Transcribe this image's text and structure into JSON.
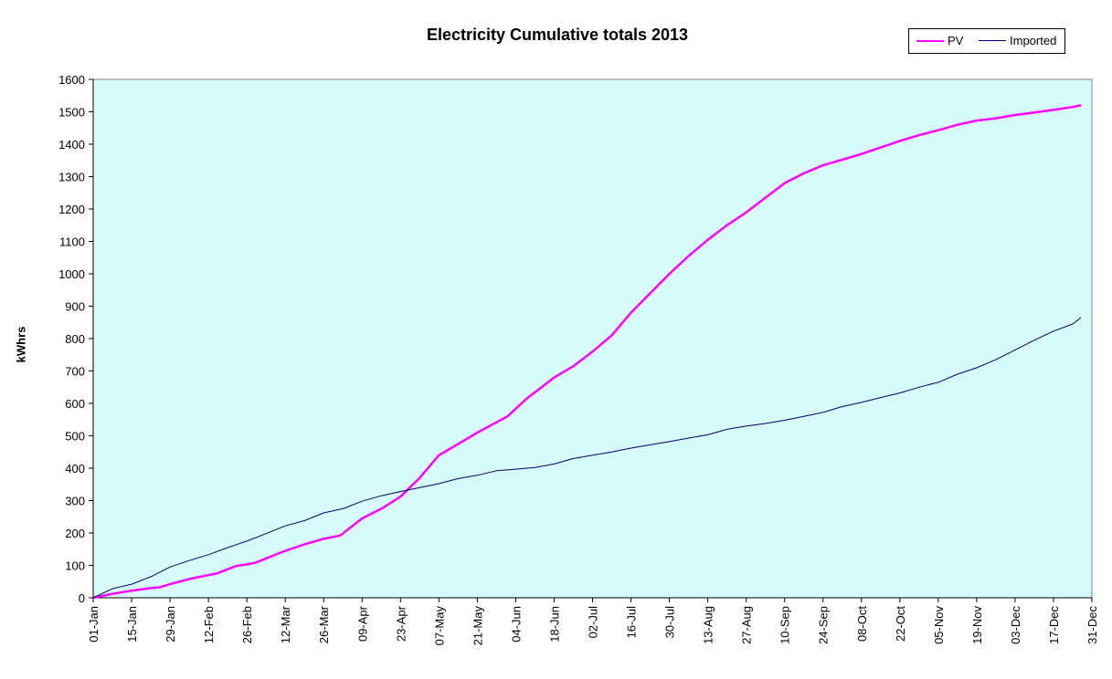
{
  "chart_data": {
    "type": "line",
    "title": "Electricity Cumulative totals 2013",
    "xlabel": "",
    "ylabel": "kWhrs",
    "ylim": [
      0,
      1600
    ],
    "xlim": [
      "01-Jan",
      "31-Dec"
    ],
    "y_ticks": [
      "0",
      "100",
      "200",
      "300",
      "400",
      "500",
      "600",
      "700",
      "800",
      "900",
      "1000",
      "1100",
      "1200",
      "1300",
      "1400",
      "1500",
      "1600"
    ],
    "x_ticks": [
      "01-Jan",
      "15-Jan",
      "29-Jan",
      "12-Feb",
      "26-Feb",
      "12-Mar",
      "26-Mar",
      "09-Apr",
      "23-Apr",
      "07-May",
      "21-May",
      "04-Jun",
      "18-Jun",
      "02-Jul",
      "16-Jul",
      "30-Jul",
      "13-Aug",
      "27-Aug",
      "10-Sep",
      "24-Sep",
      "08-Oct",
      "22-Oct",
      "05-Nov",
      "19-Nov",
      "03-Dec",
      "17-Dec",
      "31-Dec"
    ],
    "grid": false,
    "plot_background": "#d7fafb",
    "legend_position": "top-right",
    "series": [
      {
        "name": "PV",
        "color": "#ff00ff",
        "points": [
          [
            "01-Jan",
            0
          ],
          [
            "08-Jan",
            12
          ],
          [
            "15-Jan",
            22
          ],
          [
            "22-Jan",
            30
          ],
          [
            "25-Jan",
            32
          ],
          [
            "29-Jan",
            42
          ],
          [
            "05-Feb",
            58
          ],
          [
            "12-Feb",
            70
          ],
          [
            "15-Feb",
            75
          ],
          [
            "22-Feb",
            98
          ],
          [
            "26-Feb",
            103
          ],
          [
            "01-Mar",
            108
          ],
          [
            "12-Mar",
            145
          ],
          [
            "19-Mar",
            165
          ],
          [
            "26-Mar",
            182
          ],
          [
            "01-Apr",
            192
          ],
          [
            "09-Apr",
            245
          ],
          [
            "16-Apr",
            275
          ],
          [
            "23-Apr",
            312
          ],
          [
            "30-Apr",
            370
          ],
          [
            "07-May",
            440
          ],
          [
            "10-May",
            455
          ],
          [
            "21-May",
            510
          ],
          [
            "01-Jun",
            560
          ],
          [
            "08-Jun",
            615
          ],
          [
            "18-Jun",
            680
          ],
          [
            "25-Jun",
            715
          ],
          [
            "02-Jul",
            760
          ],
          [
            "09-Jul",
            810
          ],
          [
            "16-Jul",
            880
          ],
          [
            "23-Jul",
            940
          ],
          [
            "30-Jul",
            1000
          ],
          [
            "06-Aug",
            1055
          ],
          [
            "13-Aug",
            1105
          ],
          [
            "20-Aug",
            1150
          ],
          [
            "27-Aug",
            1190
          ],
          [
            "03-Sep",
            1235
          ],
          [
            "10-Sep",
            1280
          ],
          [
            "17-Sep",
            1310
          ],
          [
            "24-Sep",
            1335
          ],
          [
            "01-Oct",
            1352
          ],
          [
            "08-Oct",
            1370
          ],
          [
            "15-Oct",
            1390
          ],
          [
            "22-Oct",
            1410
          ],
          [
            "29-Oct",
            1428
          ],
          [
            "05-Nov",
            1443
          ],
          [
            "12-Nov",
            1460
          ],
          [
            "19-Nov",
            1473
          ],
          [
            "26-Nov",
            1480
          ],
          [
            "03-Dec",
            1490
          ],
          [
            "10-Dec",
            1498
          ],
          [
            "17-Dec",
            1506
          ],
          [
            "24-Dec",
            1515
          ],
          [
            "27-Dec",
            1520
          ]
        ]
      },
      {
        "name": "Imported",
        "color": "#000066",
        "points": [
          [
            "01-Jan",
            0
          ],
          [
            "08-Jan",
            28
          ],
          [
            "15-Jan",
            42
          ],
          [
            "22-Jan",
            65
          ],
          [
            "29-Jan",
            95
          ],
          [
            "05-Feb",
            115
          ],
          [
            "12-Feb",
            133
          ],
          [
            "19-Feb",
            155
          ],
          [
            "26-Feb",
            175
          ],
          [
            "05-Mar",
            198
          ],
          [
            "12-Mar",
            222
          ],
          [
            "19-Mar",
            238
          ],
          [
            "26-Mar",
            262
          ],
          [
            "02-Apr",
            275
          ],
          [
            "09-Apr",
            298
          ],
          [
            "16-Apr",
            315
          ],
          [
            "23-Apr",
            328
          ],
          [
            "30-Apr",
            340
          ],
          [
            "07-May",
            352
          ],
          [
            "14-May",
            368
          ],
          [
            "21-May",
            378
          ],
          [
            "28-May",
            392
          ],
          [
            "04-Jun",
            397
          ],
          [
            "11-Jun",
            402
          ],
          [
            "18-Jun",
            413
          ],
          [
            "25-Jun",
            430
          ],
          [
            "02-Jul",
            440
          ],
          [
            "09-Jul",
            450
          ],
          [
            "16-Jul",
            462
          ],
          [
            "23-Jul",
            472
          ],
          [
            "30-Jul",
            482
          ],
          [
            "06-Aug",
            493
          ],
          [
            "13-Aug",
            503
          ],
          [
            "20-Aug",
            520
          ],
          [
            "27-Aug",
            530
          ],
          [
            "03-Sep",
            538
          ],
          [
            "10-Sep",
            548
          ],
          [
            "17-Sep",
            560
          ],
          [
            "24-Sep",
            572
          ],
          [
            "01-Oct",
            590
          ],
          [
            "08-Oct",
            603
          ],
          [
            "15-Oct",
            618
          ],
          [
            "22-Oct",
            632
          ],
          [
            "29-Oct",
            650
          ],
          [
            "05-Nov",
            665
          ],
          [
            "12-Nov",
            690
          ],
          [
            "19-Nov",
            710
          ],
          [
            "26-Nov",
            735
          ],
          [
            "03-Dec",
            765
          ],
          [
            "10-Dec",
            795
          ],
          [
            "17-Dec",
            823
          ],
          [
            "24-Dec",
            845
          ],
          [
            "27-Dec",
            865
          ]
        ]
      }
    ]
  }
}
